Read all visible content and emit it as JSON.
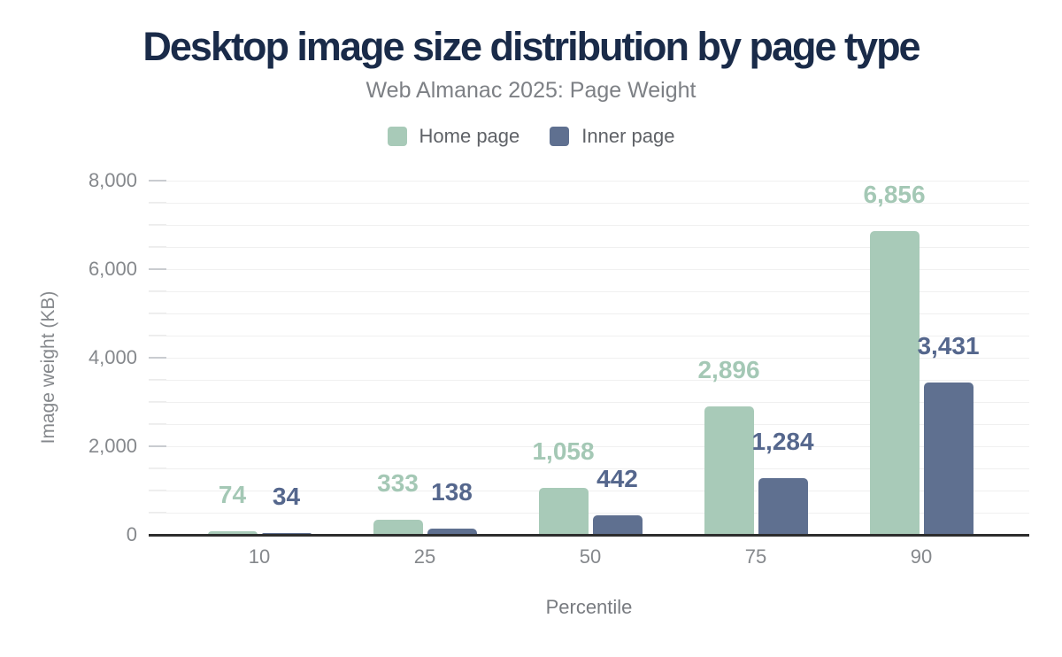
{
  "chart_data": {
    "type": "bar",
    "title": "Desktop image size distribution by page type",
    "subtitle": "Web Almanac 2025: Page Weight",
    "xlabel": "Percentile",
    "ylabel": "Image weight (KB)",
    "categories": [
      "10",
      "25",
      "50",
      "75",
      "90"
    ],
    "series": [
      {
        "name": "Home page",
        "color": "#a8cab8",
        "label_color": "#a4c8b5",
        "values": [
          74,
          333,
          1058,
          2896,
          6856
        ],
        "value_labels": [
          "74",
          "333",
          "1,058",
          "2,896",
          "6,856"
        ]
      },
      {
        "name": "Inner page",
        "color": "#5f7090",
        "label_color": "#55678d",
        "values": [
          34,
          138,
          442,
          1284,
          3431
        ],
        "value_labels": [
          "34",
          "138",
          "442",
          "1,284",
          "3,431"
        ]
      }
    ],
    "ylim": [
      0,
      8000
    ],
    "y_major_ticks": [
      0,
      2000,
      4000,
      6000,
      8000
    ],
    "y_major_tick_labels": [
      "0",
      "2,000",
      "4,000",
      "6,000",
      "8,000"
    ],
    "y_minor_tick_step": 500,
    "grid": "horizontal, minor lines every 500",
    "legend_position": "top",
    "colors": {
      "title": "#1a2b49",
      "subtitle": "#7d8085",
      "axis_line": "#2d2d2d",
      "tick_label": "#85888c",
      "gridline": "#f0f0f0",
      "background": "#ffffff"
    }
  }
}
